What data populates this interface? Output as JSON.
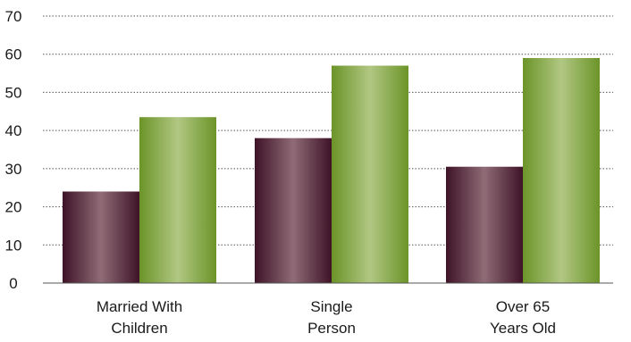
{
  "chart_data": {
    "type": "bar",
    "categories": [
      [
        "Married With",
        "Children"
      ],
      [
        "Single",
        "Person"
      ],
      [
        "Over 65",
        "Years Old"
      ]
    ],
    "series": [
      {
        "values": [
          24,
          38,
          30.5
        ],
        "color": "#6b2a42"
      },
      {
        "values": [
          43.5,
          57,
          59
        ],
        "color": "#7fa63a"
      }
    ],
    "ylim": [
      0,
      70
    ],
    "yticks": [
      "0",
      "10",
      "20",
      "30",
      "40",
      "50",
      "60",
      "70"
    ],
    "grid": true,
    "gridStyle": "dotted",
    "legend": false
  }
}
